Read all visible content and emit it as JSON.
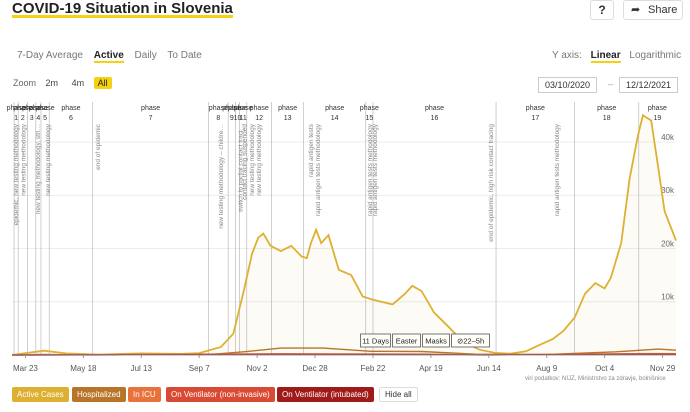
{
  "header": {
    "title": "COVID-19 Situation in Slovenia",
    "help_label": "?",
    "share_label": "Share"
  },
  "tabs": [
    "7-Day Average",
    "Active",
    "Daily",
    "To Date"
  ],
  "active_tab": "Active",
  "yaxis": {
    "label": "Y axis:",
    "options": [
      "Linear",
      "Logarithmic"
    ],
    "active": "Linear"
  },
  "zoom": {
    "label": "Zoom",
    "options": [
      "2m",
      "4m",
      "All"
    ],
    "active": "All"
  },
  "date_range": {
    "from": "03/10/2020",
    "separator": "–",
    "to": "12/12/2021"
  },
  "chart_data": {
    "type": "area",
    "x_ticks": [
      "Mar 23",
      "May 18",
      "Jul 13",
      "Sep 7",
      "Nov 2",
      "Dec 28",
      "Feb 22",
      "Apr 19",
      "Jun 14",
      "Aug 9",
      "Oct 4",
      "Nov 29"
    ],
    "x_tick_dates": [
      "2020-03-23",
      "2020-05-18",
      "2020-07-13",
      "2020-09-07",
      "2020-11-02",
      "2020-12-28",
      "2021-02-22",
      "2021-04-19",
      "2021-06-14",
      "2021-08-09",
      "2021-10-04",
      "2021-11-29"
    ],
    "y_ticks": [
      "10k",
      "20k",
      "30k",
      "40k"
    ],
    "y_tick_values": [
      10000,
      20000,
      30000,
      40000
    ],
    "ylim": [
      0,
      47500
    ],
    "xlim": [
      "2020-03-10",
      "2021-12-12"
    ],
    "phases": [
      {
        "label": "phase",
        "num": "1",
        "date": "2020-03-12"
      },
      {
        "label": "phase",
        "num": "2",
        "date": "2020-03-16"
      },
      {
        "label": "phase",
        "num": "3",
        "date": "2020-03-25"
      },
      {
        "label": "phase",
        "num": "4",
        "date": "2020-04-02"
      },
      {
        "label": "phase",
        "num": "5",
        "date": "2020-04-07"
      },
      {
        "label": "phase",
        "num": "6",
        "date": "2020-04-15"
      },
      {
        "label": "phase",
        "num": "7",
        "date": "2020-05-27"
      },
      {
        "label": "phase",
        "num": "8",
        "date": "2020-09-16"
      },
      {
        "label": "phase",
        "num": "9",
        "date": "2020-10-05"
      },
      {
        "label": "phase",
        "num": "10",
        "date": "2020-10-12"
      },
      {
        "label": "phase",
        "num": "11",
        "date": "2020-10-16"
      },
      {
        "label": "phase",
        "num": "12",
        "date": "2020-10-23"
      },
      {
        "label": "phase",
        "num": "13",
        "date": "2020-11-16"
      },
      {
        "label": "phase",
        "num": "14",
        "date": "2020-12-17"
      },
      {
        "label": "phase",
        "num": "15",
        "date": "2021-02-15"
      },
      {
        "label": "phase",
        "num": "16",
        "date": "2021-02-22"
      },
      {
        "label": "phase",
        "num": "17",
        "date": "2021-06-21"
      },
      {
        "label": "phase",
        "num": "18",
        "date": "2021-09-05"
      },
      {
        "label": "phase",
        "num": "19",
        "date": "2021-11-06"
      }
    ],
    "annotations": [
      {
        "text": "epidemic, new testing methodology",
        "date": "2020-03-13"
      },
      {
        "text": "new testing methodology",
        "date": "2020-03-20"
      },
      {
        "text": "new testing methodology, stri…",
        "date": "2020-04-03"
      },
      {
        "text": "new testing methodology",
        "date": "2020-04-13"
      },
      {
        "text": "end of epidemic",
        "date": "2020-05-31"
      },
      {
        "text": "new testing methodology – childre…",
        "date": "2020-09-27"
      },
      {
        "text": "switch to partial contact traci…",
        "date": "2020-10-16"
      },
      {
        "text": "contact tracing suspended",
        "date": "2020-10-20"
      },
      {
        "text": "new testing methodology",
        "date": "2020-10-27"
      },
      {
        "text": "new testing methodology",
        "date": "2020-11-03"
      },
      {
        "text": "rapid antigen tests",
        "date": "2020-12-23"
      },
      {
        "text": "rapid antigen tests methodology",
        "date": "2020-12-30"
      },
      {
        "text": "rapid antigen tests methodology",
        "date": "2021-02-18"
      },
      {
        "text": "rapid antigen tests methodology",
        "date": "2021-02-23"
      },
      {
        "text": "end of epidemic, high risk contact tracing",
        "date": "2021-06-15"
      },
      {
        "text": "rapid antigen tests methodology",
        "date": "2021-08-18"
      }
    ],
    "events": [
      {
        "text": "11 Days",
        "date": "2021-02-10"
      },
      {
        "text": "Easter",
        "date": "2021-03-06"
      },
      {
        "text": "Masks",
        "date": "2021-03-20"
      },
      {
        "text": "⊘22–5h",
        "date": "2021-04-10"
      }
    ],
    "series": [
      {
        "name": "Active Cases",
        "color": "#deb032",
        "points": [
          [
            "2020-03-10",
            0
          ],
          [
            "2020-03-25",
            400
          ],
          [
            "2020-04-10",
            800
          ],
          [
            "2020-05-01",
            300
          ],
          [
            "2020-06-01",
            80
          ],
          [
            "2020-07-13",
            300
          ],
          [
            "2020-08-20",
            200
          ],
          [
            "2020-09-07",
            350
          ],
          [
            "2020-09-28",
            1500
          ],
          [
            "2020-10-10",
            4000
          ],
          [
            "2020-10-20",
            12000
          ],
          [
            "2020-10-28",
            19000
          ],
          [
            "2020-11-03",
            22000
          ],
          [
            "2020-11-08",
            22800
          ],
          [
            "2020-11-15",
            20500
          ],
          [
            "2020-11-25",
            19500
          ],
          [
            "2020-12-05",
            20500
          ],
          [
            "2020-12-15",
            18500
          ],
          [
            "2020-12-20",
            18200
          ],
          [
            "2020-12-24",
            21000
          ],
          [
            "2020-12-29",
            23500
          ],
          [
            "2021-01-03",
            21000
          ],
          [
            "2021-01-10",
            22500
          ],
          [
            "2021-01-20",
            16000
          ],
          [
            "2021-02-01",
            15000
          ],
          [
            "2021-02-12",
            11000
          ],
          [
            "2021-02-20",
            10500
          ],
          [
            "2021-03-02",
            10000
          ],
          [
            "2021-03-13",
            9500
          ],
          [
            "2021-03-25",
            11500
          ],
          [
            "2021-04-01",
            13000
          ],
          [
            "2021-04-10",
            12000
          ],
          [
            "2021-04-22",
            8000
          ],
          [
            "2021-05-05",
            5500
          ],
          [
            "2021-05-20",
            2500
          ],
          [
            "2021-06-05",
            1000
          ],
          [
            "2021-06-20",
            400
          ],
          [
            "2021-07-05",
            250
          ],
          [
            "2021-07-20",
            700
          ],
          [
            "2021-08-01",
            1800
          ],
          [
            "2021-08-15",
            3000
          ],
          [
            "2021-08-25",
            4500
          ],
          [
            "2021-09-05",
            7000
          ],
          [
            "2021-09-15",
            11500
          ],
          [
            "2021-09-25",
            13500
          ],
          [
            "2021-10-04",
            12500
          ],
          [
            "2021-10-10",
            14500
          ],
          [
            "2021-10-20",
            21000
          ],
          [
            "2021-10-28",
            33000
          ],
          [
            "2021-11-05",
            41000
          ],
          [
            "2021-11-10",
            45000
          ],
          [
            "2021-11-18",
            44000
          ],
          [
            "2021-11-25",
            35000
          ],
          [
            "2021-12-01",
            27000
          ],
          [
            "2021-12-12",
            21500
          ]
        ]
      },
      {
        "name": "Hospitalized",
        "color": "#b8752a",
        "points": [
          [
            "2020-03-10",
            0
          ],
          [
            "2020-04-05",
            100
          ],
          [
            "2020-06-01",
            20
          ],
          [
            "2020-09-15",
            50
          ],
          [
            "2020-10-20",
            600
          ],
          [
            "2020-11-25",
            1300
          ],
          [
            "2021-01-05",
            1300
          ],
          [
            "2021-02-20",
            700
          ],
          [
            "2021-04-10",
            650
          ],
          [
            "2021-06-01",
            150
          ],
          [
            "2021-08-10",
            100
          ],
          [
            "2021-10-15",
            600
          ],
          [
            "2021-11-25",
            1100
          ],
          [
            "2021-12-12",
            900
          ]
        ]
      },
      {
        "name": "In ICU",
        "color": "#e8723c",
        "points": [
          [
            "2020-03-10",
            0
          ],
          [
            "2020-11-25",
            220
          ],
          [
            "2021-01-05",
            200
          ],
          [
            "2021-04-10",
            150
          ],
          [
            "2021-06-10",
            30
          ],
          [
            "2021-11-25",
            260
          ],
          [
            "2021-12-12",
            240
          ]
        ]
      },
      {
        "name": "On Ventilator (non-invasive)",
        "color": "#d94a35",
        "points": [
          [
            "2020-03-10",
            0
          ],
          [
            "2020-11-25",
            120
          ],
          [
            "2021-04-10",
            90
          ],
          [
            "2021-06-10",
            15
          ],
          [
            "2021-11-25",
            140
          ],
          [
            "2021-12-12",
            130
          ]
        ]
      },
      {
        "name": "On Ventilator (intubated)",
        "color": "#a01a1a",
        "points": [
          [
            "2020-03-10",
            0
          ],
          [
            "2020-11-25",
            90
          ],
          [
            "2021-04-10",
            70
          ],
          [
            "2021-06-10",
            10
          ],
          [
            "2021-11-25",
            110
          ],
          [
            "2021-12-12",
            100
          ]
        ]
      }
    ]
  },
  "source": "viri podatkov: NIJZ, Ministrstvo za zdravje, bolnišnice",
  "legend": {
    "items": [
      "Active Cases",
      "Hospitalized",
      "In ICU",
      "On Ventilator (non-invasive)",
      "On Ventilator (intubated)"
    ],
    "colors": [
      "#deb032",
      "#b8752a",
      "#e8723c",
      "#d94a35",
      "#a01a1a"
    ],
    "hide_all": "Hide all"
  }
}
